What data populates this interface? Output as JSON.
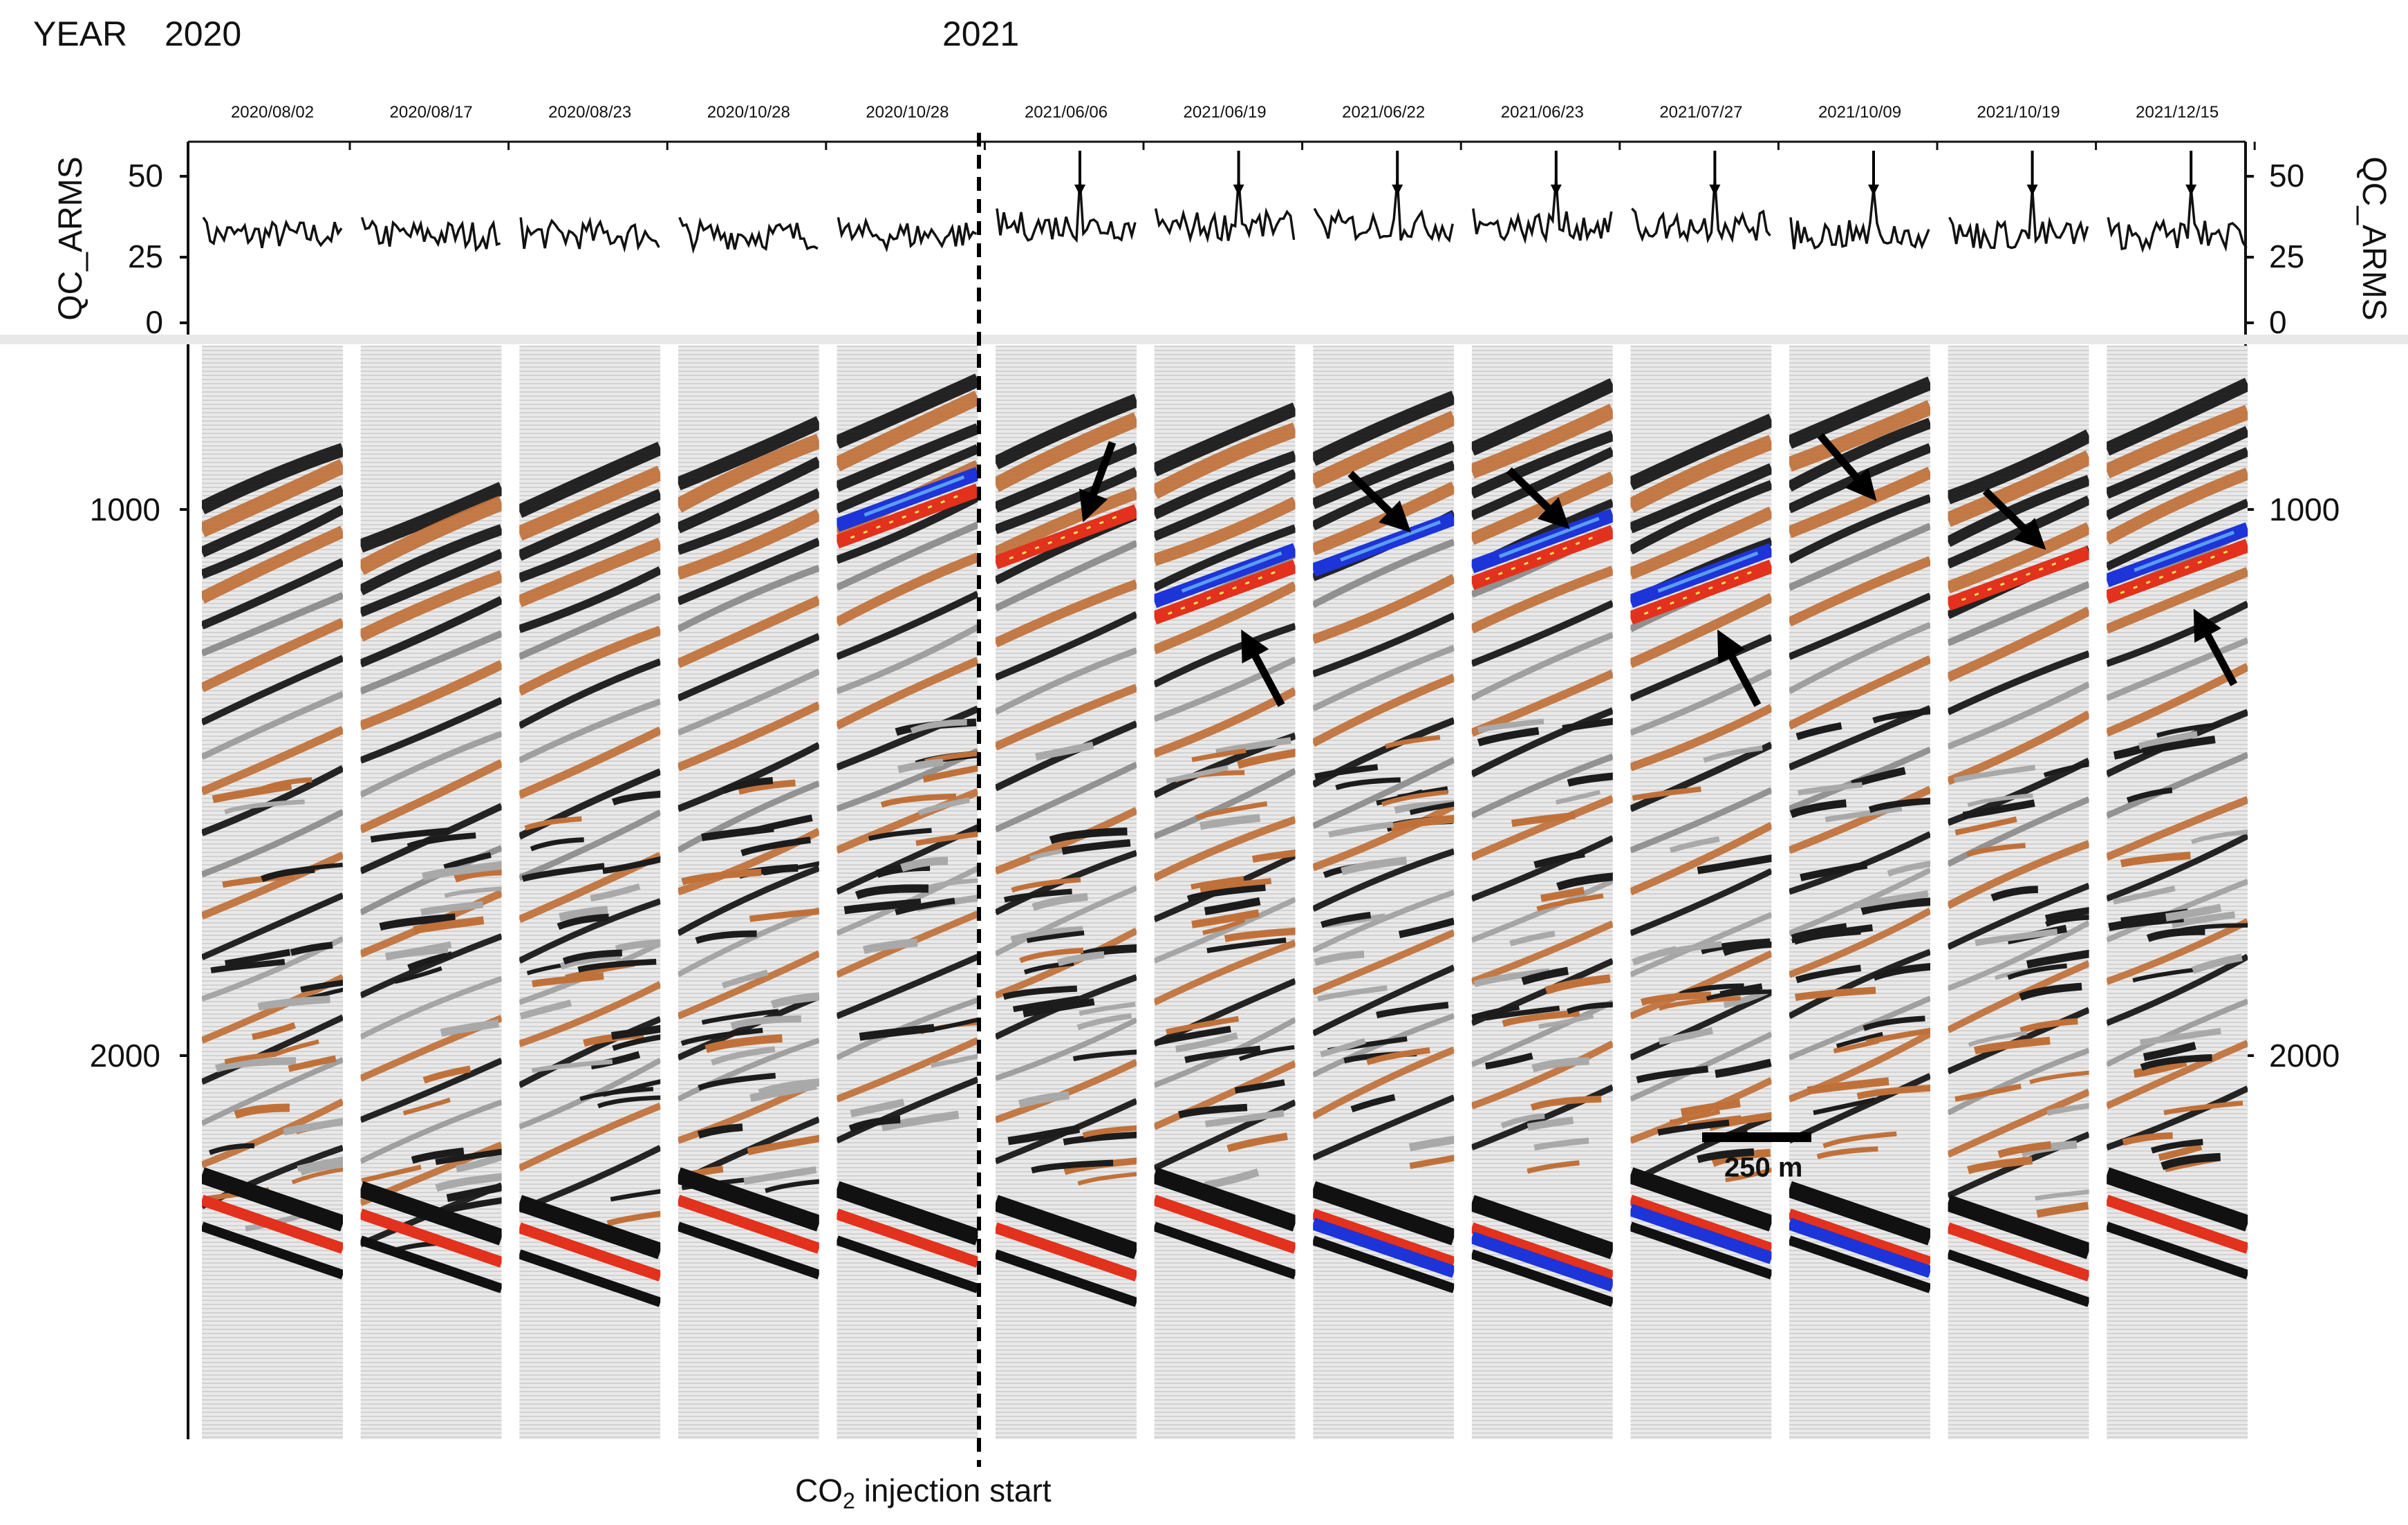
{
  "header": {
    "year_label": "YEAR",
    "year_2020": "2020",
    "year_2021": "2021"
  },
  "panels": [
    {
      "date": "2020/08/02",
      "qc_arms_peak": false,
      "anomaly": false
    },
    {
      "date": "2020/08/17",
      "qc_arms_peak": false,
      "anomaly": false
    },
    {
      "date": "2020/08/23",
      "qc_arms_peak": false,
      "anomaly": false
    },
    {
      "date": "2020/10/28",
      "qc_arms_peak": false,
      "anomaly": false
    },
    {
      "date": "2020/10/28",
      "qc_arms_peak": false,
      "anomaly": false
    },
    {
      "date": "2021/06/06",
      "qc_arms_peak": true,
      "anomaly": true
    },
    {
      "date": "2021/06/19",
      "qc_arms_peak": true,
      "anomaly": true
    },
    {
      "date": "2021/06/22",
      "qc_arms_peak": true,
      "anomaly": true
    },
    {
      "date": "2021/06/23",
      "qc_arms_peak": true,
      "anomaly": true
    },
    {
      "date": "2021/07/27",
      "qc_arms_peak": true,
      "anomaly": true
    },
    {
      "date": "2021/10/09",
      "qc_arms_peak": true,
      "anomaly": true
    },
    {
      "date": "2021/10/19",
      "qc_arms_peak": true,
      "anomaly": true
    },
    {
      "date": "2021/12/15",
      "qc_arms_peak": true,
      "anomaly": true
    }
  ],
  "qc_axis": {
    "label": "QC_ARMS",
    "ticks": [
      "50",
      "25",
      "0"
    ],
    "tick_values": [
      50,
      25,
      0
    ]
  },
  "depth_axis": {
    "ticks": [
      "1000",
      "2000"
    ],
    "tick_values": [
      1000,
      2000
    ]
  },
  "annotations": {
    "scale_bar": "250 m",
    "injection_prefix": "CO",
    "injection_sub": "2",
    "injection_suffix": " injection start"
  },
  "colors": {
    "black_reflector": "#141414",
    "orange_reflector": "#c0713a",
    "red_anomaly": "#e2311c",
    "blue_anomaly": "#1d34d8",
    "yellow_highlight": "#f3e25a",
    "gray_reflector": "#7d7d7d"
  }
}
